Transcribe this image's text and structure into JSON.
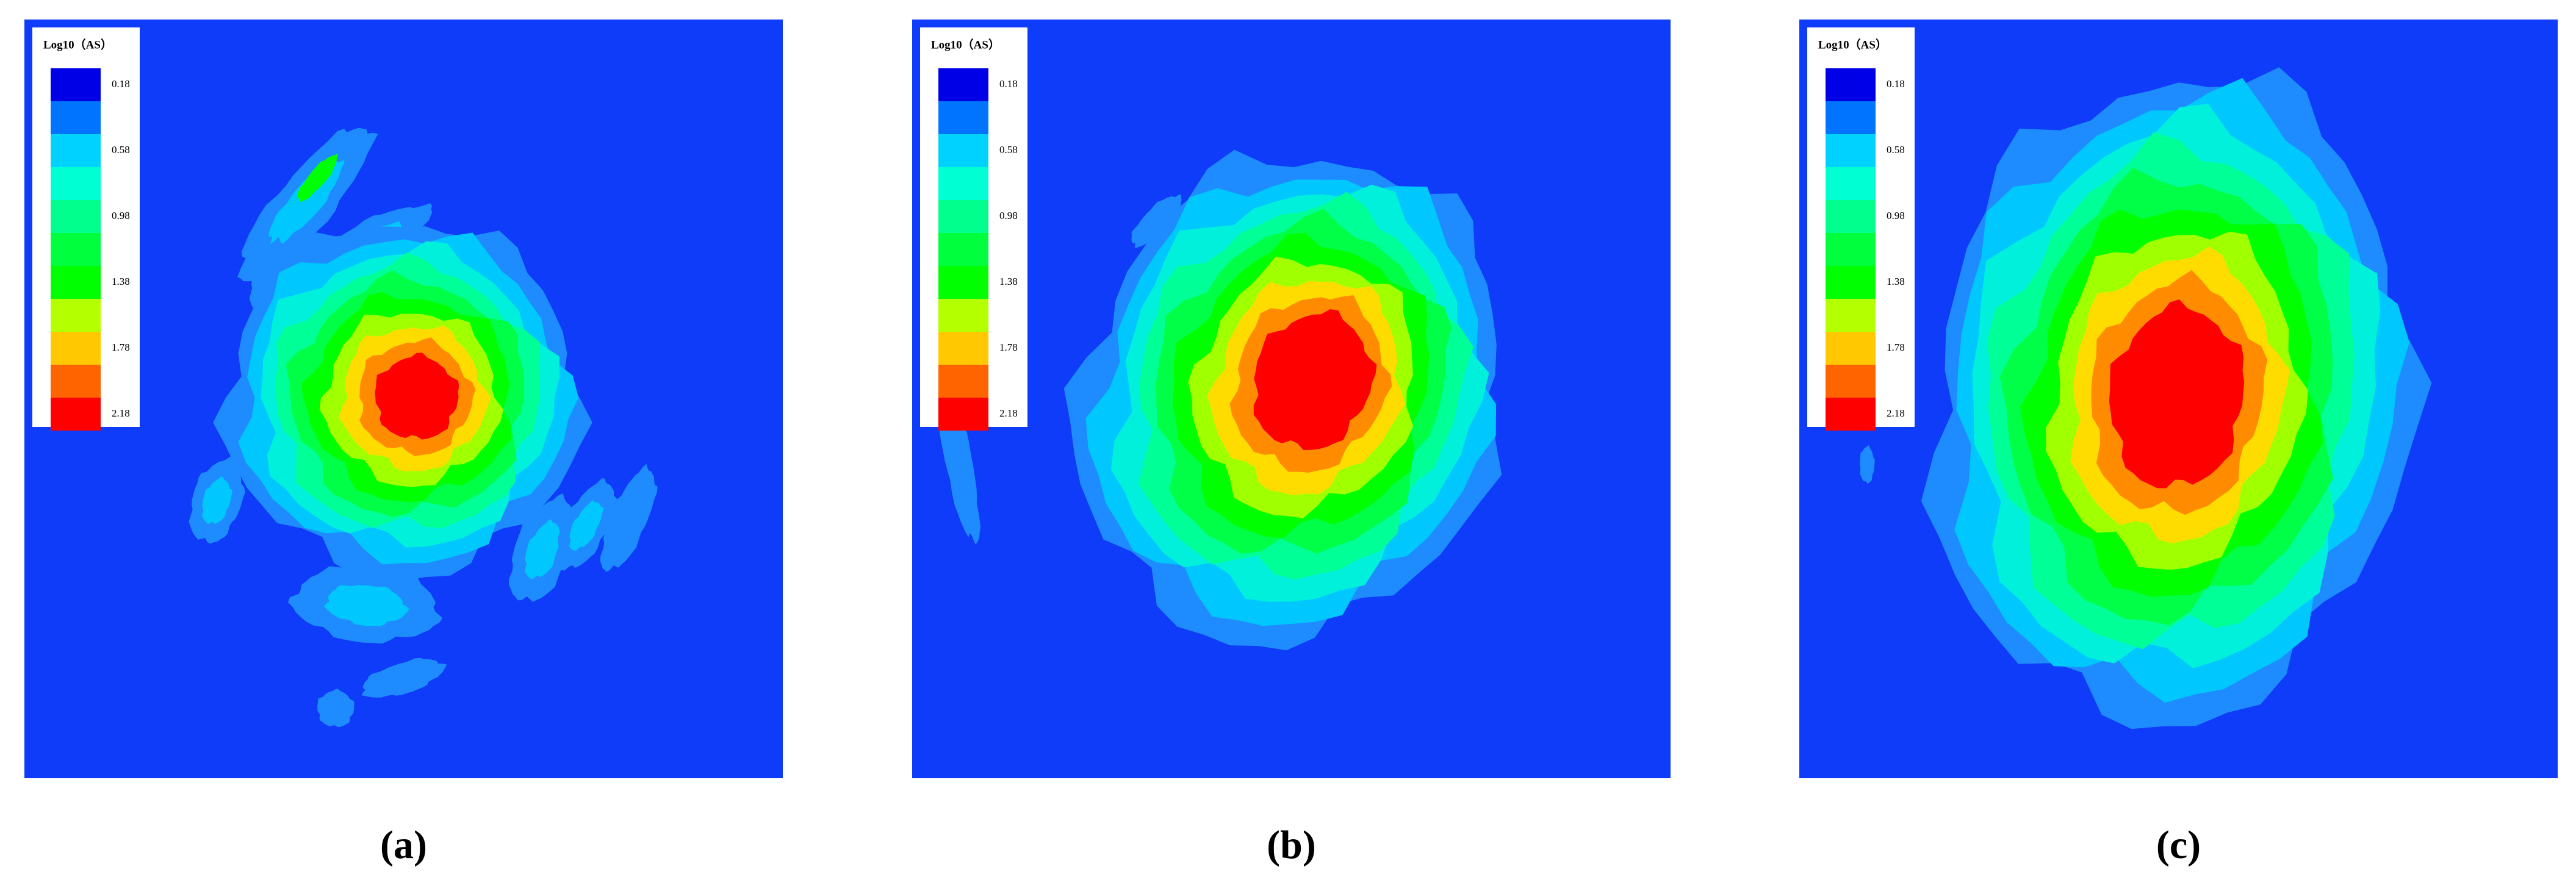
{
  "legend_colors": [
    "#0000e6",
    "#0073ff",
    "#00d2ff",
    "#00ffd2",
    "#00ff8c",
    "#00ff3c",
    "#00ff00",
    "#b4ff00",
    "#ffc800",
    "#ff6400",
    "#ff0000"
  ],
  "panels": [
    {
      "label": "(a)",
      "legend": {
        "title": "Log10（AS）",
        "labels": [
          "0.18",
          "0.58",
          "0.98",
          "1.38",
          "1.78",
          "2.18"
        ]
      }
    },
    {
      "label": "(b)",
      "legend": {
        "title": "Log10（AS）",
        "labels": [
          "0.18",
          "0.58",
          "0.98",
          "1.38",
          "1.78",
          "2.18"
        ]
      }
    },
    {
      "label": "(c)",
      "legend": {
        "title": "Log10（AS）",
        "labels": [
          "0.18",
          "0.58",
          "0.98",
          "1.38",
          "1.78",
          "2.18"
        ]
      }
    }
  ]
}
